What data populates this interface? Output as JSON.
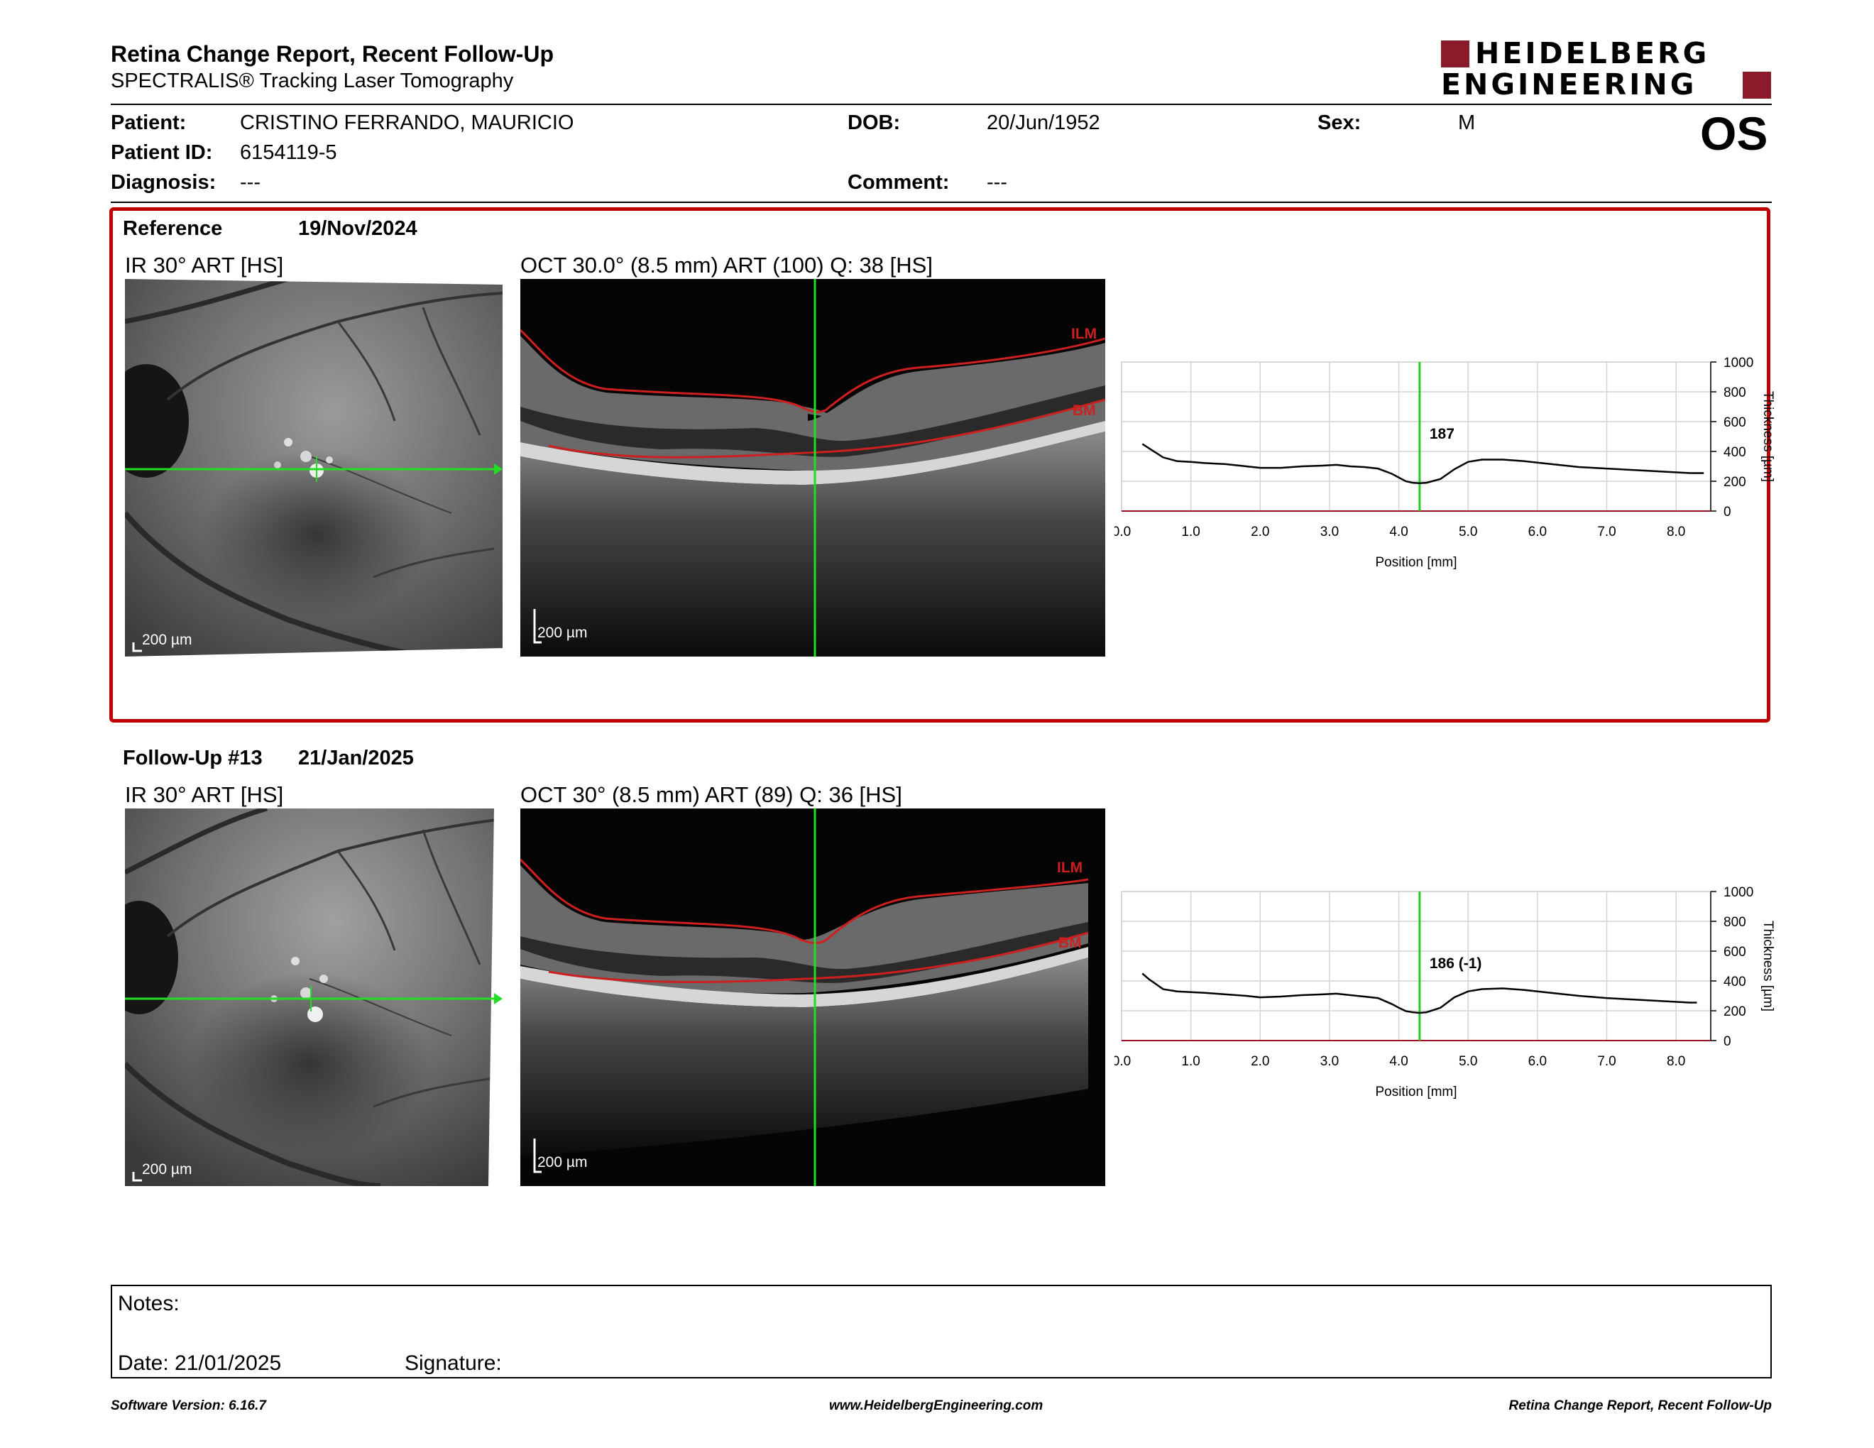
{
  "header": {
    "title": "Retina Change Report, Recent Follow-Up",
    "subtitle": "SPECTRALIS® Tracking Laser Tomography",
    "logo_line1": "HEIDELBERG",
    "logo_line2": "ENGINEERING",
    "eye": "OS"
  },
  "patient": {
    "patient_label": "Patient:",
    "patient_name": "CRISTINO FERRANDO, MAURICIO",
    "id_label": "Patient ID:",
    "id_value": "6154119-5",
    "diagnosis_label": "Diagnosis:",
    "diagnosis_value": "---",
    "dob_label": "DOB:",
    "dob_value": "20/Jun/1952",
    "comment_label": "Comment:",
    "comment_value": "---",
    "sex_label": "Sex:",
    "sex_value": "M"
  },
  "reference": {
    "label": "Reference",
    "date": "19/Nov/2024",
    "ir_caption": "IR 30° ART [HS]",
    "oct_caption": "OCT 30.0° (8.5 mm) ART (100) Q: 38 [HS]",
    "ir_scale": "200 µm",
    "oct_scale": "200 µm",
    "ilm_label": "ILM",
    "bm_label": "BM",
    "cursor_value": "187"
  },
  "followup": {
    "label": "Follow-Up #13",
    "date": "21/Jan/2025",
    "ir_caption": "IR 30° ART [HS]",
    "oct_caption": "OCT 30° (8.5 mm) ART (89) Q: 36 [HS]",
    "ir_scale": "200 µm",
    "oct_scale": "200 µm",
    "ilm_label": "ILM",
    "bm_label": "BM",
    "cursor_value": "186 (-1)"
  },
  "chart_data": [
    {
      "type": "line",
      "xlabel": "Position [mm]",
      "ylabel": "Thickness [µm]",
      "xlim": [
        0.0,
        8.5
      ],
      "ylim": [
        0,
        1000
      ],
      "x_ticks": [
        "0.0",
        "1.0",
        "2.0",
        "3.0",
        "4.0",
        "5.0",
        "6.0",
        "7.0",
        "8.0"
      ],
      "y_ticks": [
        "0",
        "200",
        "400",
        "600",
        "800",
        "1000"
      ],
      "grid": true,
      "cursor_x": 4.3,
      "cursor_label": "187",
      "series": [
        {
          "x": [
            0.3,
            0.4,
            0.6,
            0.8,
            1.0,
            1.2,
            1.5,
            1.8,
            2.0,
            2.3,
            2.6,
            2.9,
            3.1,
            3.3,
            3.5,
            3.7,
            3.9,
            4.0,
            4.1,
            4.2,
            4.3,
            4.4,
            4.6,
            4.8,
            5.0,
            5.2,
            5.5,
            5.8,
            6.0,
            6.3,
            6.6,
            7.0,
            7.4,
            7.8,
            8.2,
            8.4
          ],
          "y": [
            450,
            420,
            360,
            335,
            330,
            322,
            315,
            300,
            290,
            290,
            300,
            305,
            310,
            300,
            295,
            285,
            250,
            225,
            200,
            190,
            187,
            190,
            215,
            280,
            330,
            345,
            345,
            335,
            325,
            310,
            295,
            285,
            275,
            265,
            255,
            255
          ]
        }
      ]
    },
    {
      "type": "line",
      "xlabel": "Position [mm]",
      "ylabel": "Thickness [µm]",
      "xlim": [
        0.0,
        8.5
      ],
      "ylim": [
        0,
        1000
      ],
      "x_ticks": [
        "0.0",
        "1.0",
        "2.0",
        "3.0",
        "4.0",
        "5.0",
        "6.0",
        "7.0",
        "8.0"
      ],
      "y_ticks": [
        "0",
        "200",
        "400",
        "600",
        "800",
        "1000"
      ],
      "grid": true,
      "cursor_x": 4.3,
      "cursor_label": "186 (-1)",
      "series": [
        {
          "x": [
            0.3,
            0.4,
            0.6,
            0.8,
            1.0,
            1.2,
            1.5,
            1.8,
            2.0,
            2.3,
            2.6,
            2.9,
            3.1,
            3.3,
            3.5,
            3.7,
            3.9,
            4.0,
            4.1,
            4.2,
            4.3,
            4.4,
            4.6,
            4.8,
            5.0,
            5.2,
            5.5,
            5.8,
            6.0,
            6.3,
            6.6,
            7.0,
            7.4,
            7.8,
            8.2,
            8.3
          ],
          "y": [
            450,
            410,
            345,
            330,
            325,
            320,
            310,
            300,
            290,
            295,
            305,
            310,
            315,
            305,
            295,
            285,
            245,
            220,
            198,
            190,
            186,
            190,
            220,
            290,
            330,
            345,
            350,
            340,
            330,
            315,
            300,
            285,
            275,
            265,
            255,
            255
          ]
        }
      ]
    }
  ],
  "notes": {
    "notes_label": "Notes:",
    "date_label": "Date: 21/01/2025",
    "signature_label": "Signature:"
  },
  "footer": {
    "left": "Software Version: 6.16.7",
    "center": "www.HeidelbergEngineering.com",
    "right": "Retina Change Report, Recent Follow-Up"
  }
}
